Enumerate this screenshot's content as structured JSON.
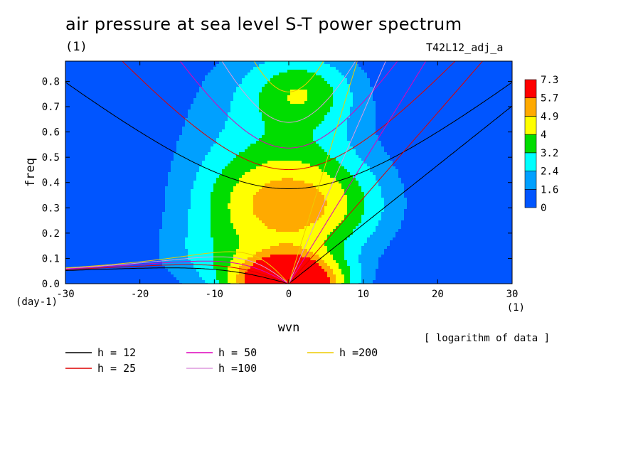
{
  "title": "air pressure at sea level S-T power spectrum",
  "subtitle": "(1)",
  "run_label": "T42L12_adj_a",
  "note": "[ logarithm of data ]",
  "chart_data": {
    "type": "heatmap",
    "xlabel": "wvn",
    "ylabel": "freq",
    "x_unit": "(1)",
    "y_unit": "(day-1)",
    "xlim": [
      -30,
      30
    ],
    "ylim": [
      0,
      0.88
    ],
    "x_ticks": [
      -30,
      -20,
      -10,
      0,
      10,
      20,
      30
    ],
    "x_tick_labels": [
      "-30",
      "-20",
      "-10",
      "0",
      "10",
      "20",
      "30"
    ],
    "y_ticks": [
      0.0,
      0.1,
      0.2,
      0.3,
      0.4,
      0.5,
      0.6,
      0.7,
      0.8
    ],
    "y_tick_labels": [
      "0.0",
      "0.1",
      "0.2",
      "0.3",
      "0.4",
      "0.5",
      "0.6",
      "0.7",
      "0.8"
    ],
    "colorbar": {
      "levels": [
        0,
        1.6,
        2.4,
        3.2,
        4,
        4.9,
        5.7,
        7.3
      ],
      "level_labels": [
        "0",
        "1.6",
        "2.4",
        "3.2",
        "4",
        "4.9",
        "5.7",
        "7.3"
      ],
      "colors": [
        "#0055ff",
        "#00a0ff",
        "#00ffff",
        "#00dd00",
        "#ffff00",
        "#ffaa00",
        "#ff0000"
      ]
    },
    "dispersion_curves": [
      {
        "label": "h = 12",
        "h": 12,
        "color": "#000000"
      },
      {
        "label": "h = 25",
        "h": 25,
        "color": "#dd0000"
      },
      {
        "label": "h = 50",
        "h": 50,
        "color": "#dd00bb"
      },
      {
        "label": "h =100",
        "h": 100,
        "color": "#dd99dd"
      },
      {
        "label": "h =200",
        "h": 200,
        "color": "#eecc00"
      }
    ]
  }
}
